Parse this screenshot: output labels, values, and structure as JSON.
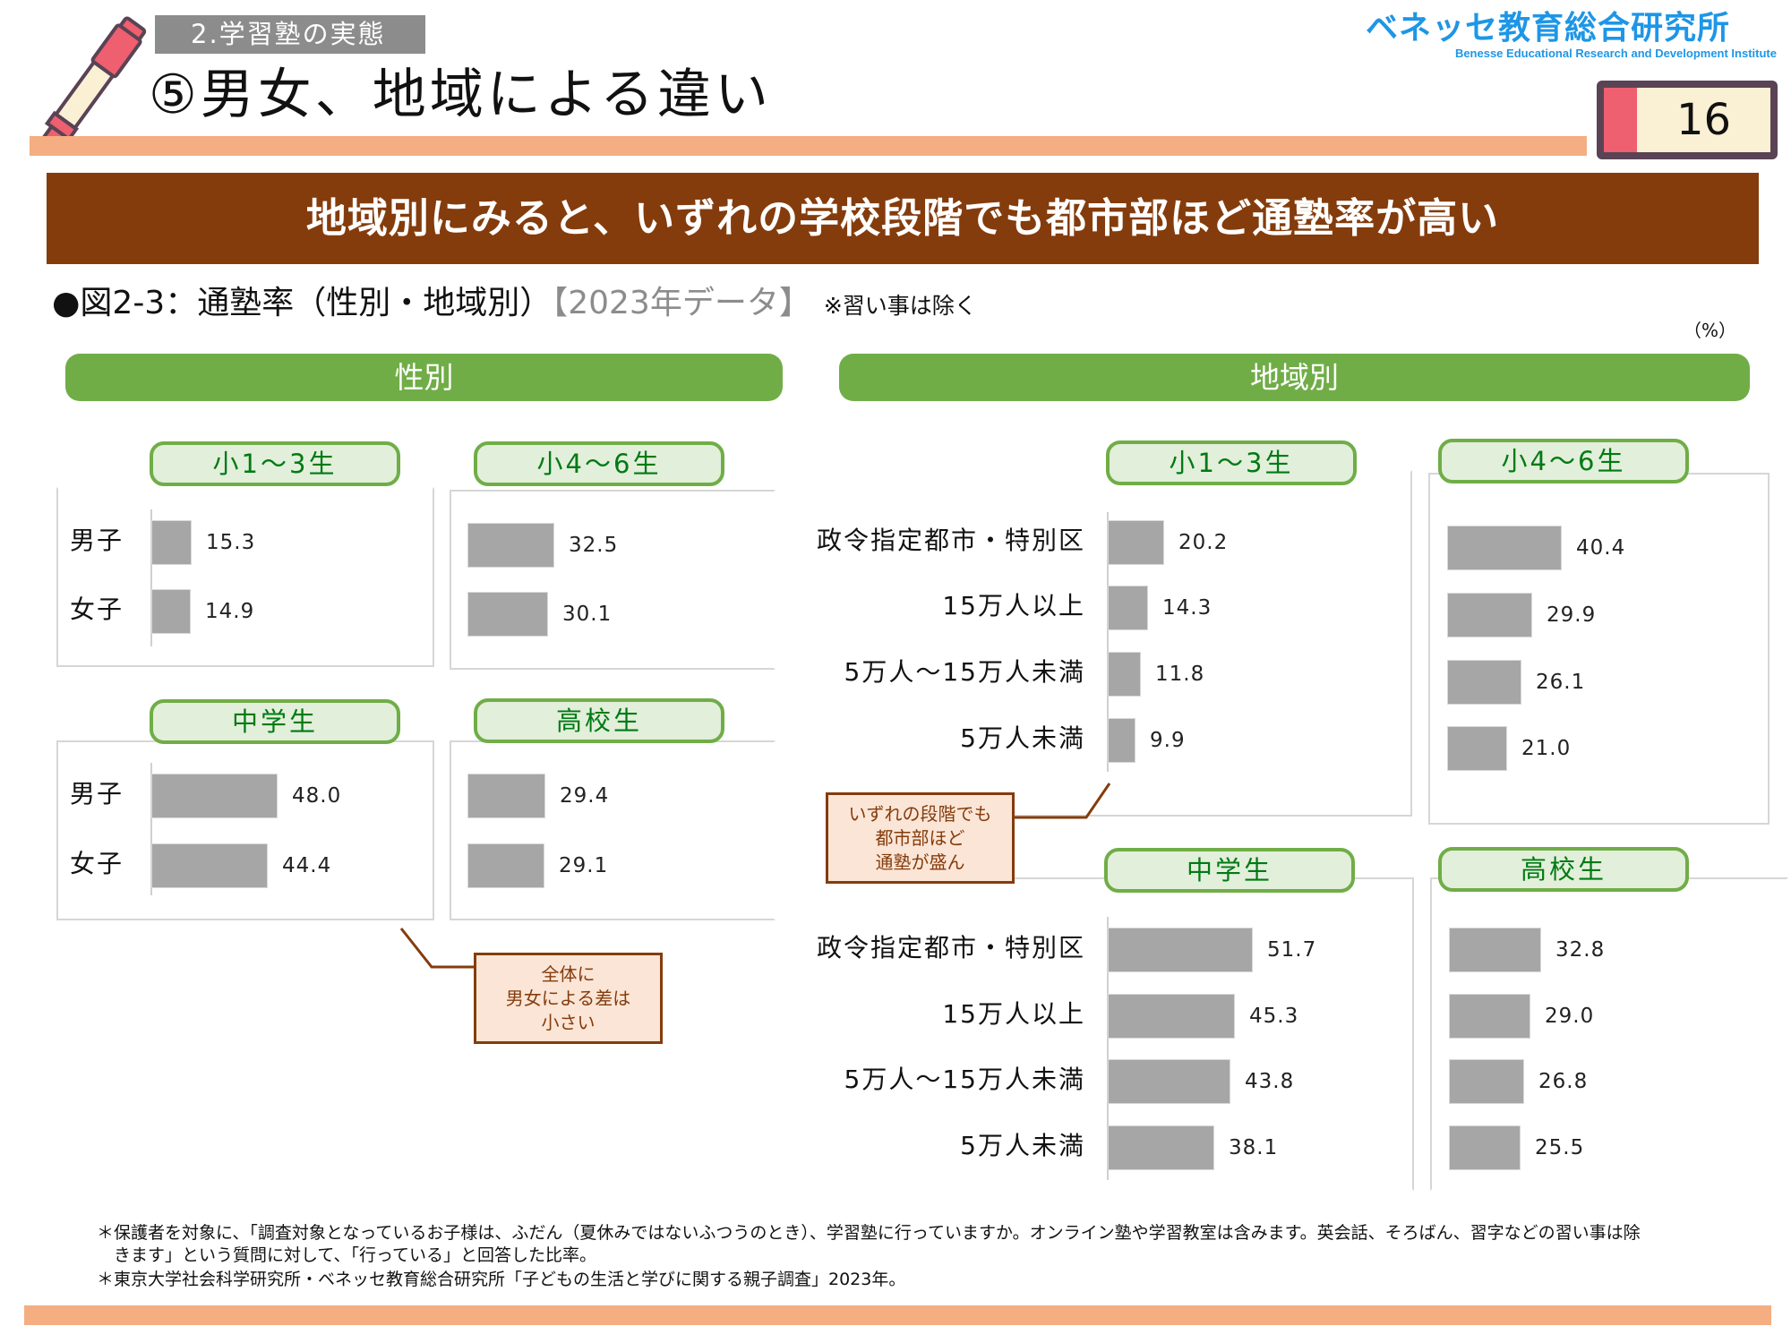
{
  "header": {
    "section_tag": "2.学習塾の実態",
    "title": "⑤男女、地域による違い",
    "logo_jp": "ベネッセ教育総合研究所",
    "logo_en": "Benesse  Educational Research and Development Institute",
    "page_number": "16",
    "icon": "marker-pen-icon"
  },
  "banner": "地域別にみると、いずれの学校段階でも都市部ほど通塾率が高い",
  "figure": {
    "title": "●図2-3：通塾率（性別・地域別）",
    "year": "【2023年データ】",
    "note": "※習い事は除く",
    "unit": "（%）"
  },
  "colors": {
    "section_header": "#70ad47",
    "pill_fill": "#e2efda",
    "pill_text": "#007a14",
    "bar": "#a6a6a6",
    "banner": "#843c0c",
    "callout_fill": "#fbe5d6",
    "strip": "#f4ae82"
  },
  "chart_data": [
    {
      "type": "bar",
      "orientation": "horizontal",
      "group": "性別",
      "panel": "小1～3生",
      "categories": [
        "男子",
        "女子"
      ],
      "values": [
        15.3,
        14.9
      ],
      "unit": "%"
    },
    {
      "type": "bar",
      "orientation": "horizontal",
      "group": "性別",
      "panel": "小4～6生",
      "categories": [
        "男子",
        "女子"
      ],
      "values": [
        32.5,
        30.1
      ],
      "unit": "%"
    },
    {
      "type": "bar",
      "orientation": "horizontal",
      "group": "性別",
      "panel": "中学生",
      "categories": [
        "男子",
        "女子"
      ],
      "values": [
        48.0,
        44.4
      ],
      "unit": "%"
    },
    {
      "type": "bar",
      "orientation": "horizontal",
      "group": "性別",
      "panel": "高校生",
      "categories": [
        "男子",
        "女子"
      ],
      "values": [
        29.4,
        29.1
      ],
      "unit": "%"
    },
    {
      "type": "bar",
      "orientation": "horizontal",
      "group": "地域別",
      "panel": "小1～3生",
      "categories": [
        "政令指定都市・特別区",
        "15万人以上",
        "5万人～15万人未満",
        "5万人未満"
      ],
      "values": [
        20.2,
        14.3,
        11.8,
        9.9
      ],
      "unit": "%"
    },
    {
      "type": "bar",
      "orientation": "horizontal",
      "group": "地域別",
      "panel": "小4～6生",
      "categories": [
        "政令指定都市・特別区",
        "15万人以上",
        "5万人～15万人未満",
        "5万人未満"
      ],
      "values": [
        40.4,
        29.9,
        26.1,
        21.0
      ],
      "unit": "%"
    },
    {
      "type": "bar",
      "orientation": "horizontal",
      "group": "地域別",
      "panel": "中学生",
      "categories": [
        "政令指定都市・特別区",
        "15万人以上",
        "5万人～15万人未満",
        "5万人未満"
      ],
      "values": [
        51.7,
        45.3,
        43.8,
        38.1
      ],
      "unit": "%"
    },
    {
      "type": "bar",
      "orientation": "horizontal",
      "group": "地域別",
      "panel": "高校生",
      "categories": [
        "政令指定都市・特別区",
        "15万人以上",
        "5万人～15万人未満",
        "5万人未満"
      ],
      "values": [
        32.8,
        29.0,
        26.8,
        25.5
      ],
      "unit": "%"
    }
  ],
  "labels": {
    "gender_header": "性別",
    "region_header": "地域別",
    "display_values": {
      "g0": [
        "15.3",
        "14.9"
      ],
      "g1": [
        "32.5",
        "30.1"
      ],
      "g2": [
        "48.0",
        "44.4"
      ],
      "g3": [
        "29.4",
        "29.1"
      ],
      "r0": [
        "20.2",
        "14.3",
        "11.8",
        "9.9"
      ],
      "r1": [
        "40.4",
        "29.9",
        "26.1",
        "21.0"
      ],
      "r2": [
        "51.7",
        "45.3",
        "43.8",
        "38.1"
      ],
      "r3": [
        "32.8",
        "29.0",
        "26.8",
        "25.5"
      ]
    },
    "panel_titles": [
      "小1～3生",
      "小4～6生",
      "中学生",
      "高校生"
    ],
    "gender_categories": [
      "男子",
      "女子"
    ],
    "region_categories": [
      "政令指定都市・特別区",
      "15万人以上",
      "5万人～15万人未満",
      "5万人未満"
    ]
  },
  "callouts": {
    "gender": [
      "全体に",
      "男女による差は",
      "小さい"
    ],
    "region": [
      "いずれの段階でも",
      "都市部ほど",
      "通塾が盛ん"
    ]
  },
  "footnotes": {
    "line1": "＊保護者を対象に、「調査対象となっているお子様は、ふだん（夏休みではないふつうのとき）、学習塾に行っていますか。オンライン塾や学習教室は含みます。英会話、そろばん、習字などの習い事は除",
    "line2": "　きます」という質問に対して、「行っている」と回答した比率。",
    "line3": "＊東京大学社会科学研究所・ベネッセ教育総合研究所「子どもの生活と学びに関する親子調査」2023年。"
  }
}
